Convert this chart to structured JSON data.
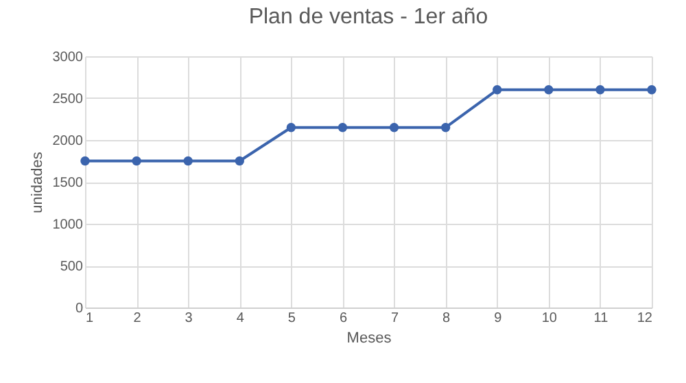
{
  "chart_data": {
    "type": "line",
    "title": "Plan de ventas - 1er año",
    "xlabel": "Meses",
    "ylabel": "unidades",
    "x": [
      1,
      2,
      3,
      4,
      5,
      6,
      7,
      8,
      9,
      10,
      11,
      12
    ],
    "series": [
      {
        "color": "#3b64ad",
        "values": [
          1750,
          1750,
          1750,
          1750,
          2150,
          2150,
          2150,
          2150,
          2600,
          2600,
          2600,
          2600
        ]
      }
    ],
    "xlim": [
      1,
      12
    ],
    "xticks": [
      1,
      2,
      3,
      4,
      5,
      6,
      7,
      8,
      9,
      10,
      11,
      12
    ],
    "ylim": [
      0,
      3000
    ],
    "yticks": [
      0,
      500,
      1000,
      1500,
      2000,
      2500,
      3000
    ],
    "grid": true,
    "marker": "circle",
    "line_style": "solid",
    "legend": false
  }
}
